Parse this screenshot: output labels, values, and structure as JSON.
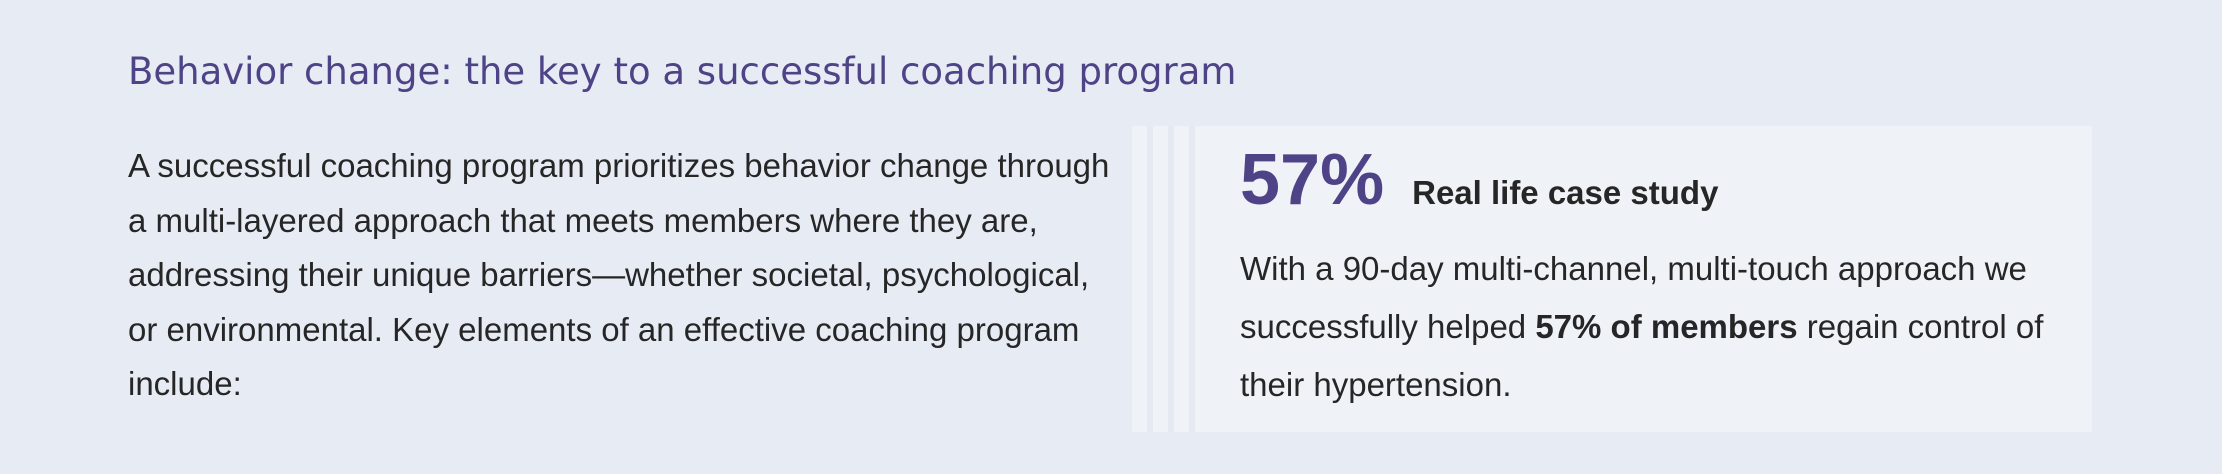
{
  "section": {
    "title": "Behavior change: the key to a successful coaching program",
    "intro": "A successful coaching program prioritizes behavior change through a multi-layered approach that meets members where they are, addressing their unique barriers—whether societal, psychological, or environmental. Key elements of an effective coaching program include:"
  },
  "stat_card": {
    "number": "57%",
    "label": "Real life case study",
    "body_before": "With a 90-day multi-channel, multi-touch approach we successfully helped ",
    "body_bold": "57% of members",
    "body_after": " regain control of their hypertension.",
    "accent_color": "#4f4387"
  }
}
